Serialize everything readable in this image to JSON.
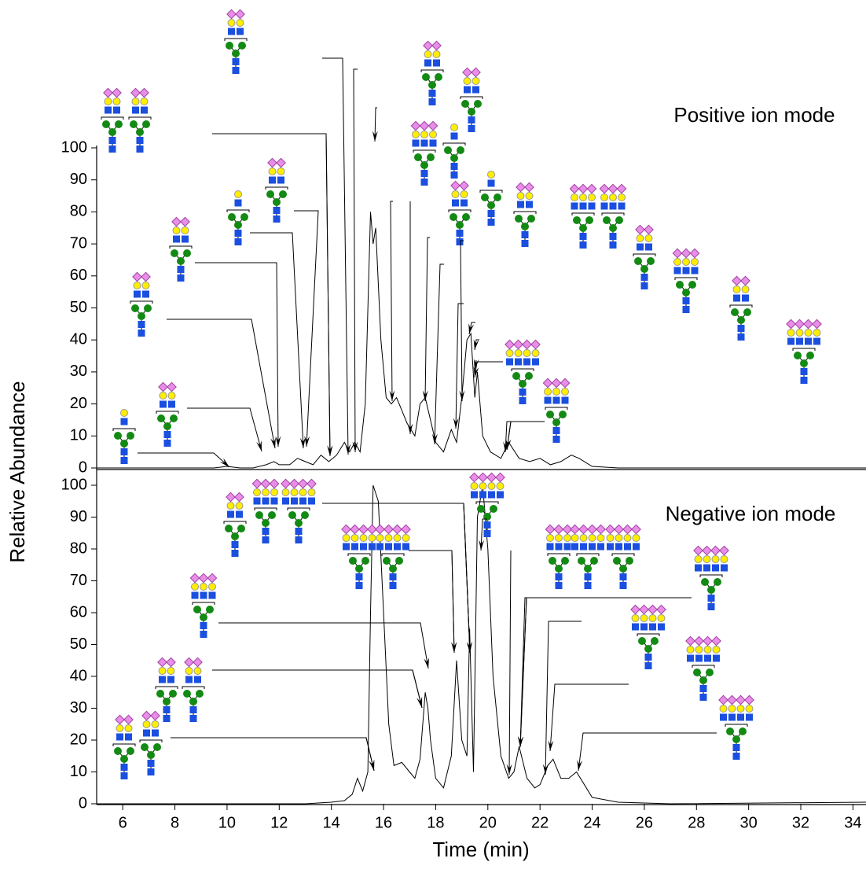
{
  "chart_data": [
    {
      "type": "line",
      "title": "Positive ion mode",
      "ylabel": "Relative Abundance",
      "color": "#000000",
      "x": [
        5,
        6,
        8,
        9.5,
        10,
        10.5,
        11,
        11.5,
        11.8,
        12,
        12.4,
        12.7,
        13,
        13.3,
        13.6,
        13.9,
        14.2,
        14.5,
        14.7,
        14.9,
        15.1,
        15.3,
        15.5,
        15.6,
        15.7,
        15.9,
        16.1,
        16.3,
        16.5,
        16.7,
        16.9,
        17.2,
        17.4,
        17.6,
        17.8,
        18,
        18.3,
        18.6,
        18.8,
        19,
        19.2,
        19.35,
        19.5,
        19.6,
        19.8,
        20.1,
        20.5,
        20.8,
        21.2,
        21.6,
        22,
        22.4,
        22.8,
        23.2,
        23.5,
        24,
        25,
        30,
        34.5
      ],
      "values": [
        0,
        0,
        0,
        0,
        0.5,
        0,
        0,
        1,
        2,
        1,
        1,
        3,
        2,
        1,
        4,
        2,
        4,
        8,
        5,
        8,
        5,
        20,
        80,
        70,
        75,
        40,
        22,
        20,
        22,
        18,
        14,
        10,
        20,
        22,
        15,
        8,
        5,
        12,
        8,
        22,
        40,
        42,
        22,
        30,
        10,
        5,
        3,
        8,
        3,
        2,
        3,
        1,
        2,
        4,
        3,
        0.5,
        0,
        0,
        0
      ],
      "xlim": [
        5,
        34.5
      ],
      "ylim": [
        0,
        100
      ],
      "yticks": [
        0,
        10,
        20,
        30,
        40,
        50,
        60,
        70,
        80,
        90,
        100
      ]
    },
    {
      "type": "line",
      "title": "Negative ion mode",
      "xlabel": "Time (min)",
      "color": "#000000",
      "x": [
        5,
        8,
        13,
        14,
        14.5,
        14.8,
        15,
        15.2,
        15.4,
        15.5,
        15.6,
        15.8,
        16,
        16.2,
        16.4,
        16.7,
        17,
        17.2,
        17.4,
        17.6,
        17.7,
        17.8,
        18,
        18.3,
        18.6,
        18.8,
        19,
        19.2,
        19.3,
        19.45,
        19.6,
        19.8,
        20,
        20.2,
        20.5,
        20.8,
        21,
        21.2,
        21.5,
        21.8,
        22,
        22.3,
        22.5,
        22.8,
        23.1,
        23.4,
        23.7,
        24,
        25,
        27,
        34.5
      ],
      "values": [
        0,
        0,
        0,
        0.5,
        1,
        3,
        8,
        4,
        10,
        60,
        100,
        95,
        60,
        25,
        12,
        13,
        10,
        8,
        14,
        35,
        30,
        20,
        8,
        5,
        15,
        45,
        20,
        15,
        55,
        10,
        90,
        100,
        80,
        40,
        15,
        8,
        10,
        18,
        8,
        5,
        6,
        12,
        14,
        8,
        8,
        10,
        6,
        2,
        0.5,
        0,
        0.5
      ],
      "xlim": [
        5,
        34.5
      ],
      "ylim": [
        0,
        100
      ],
      "yticks": [
        0,
        10,
        20,
        30,
        40,
        50,
        60,
        70,
        80,
        90,
        100
      ],
      "xticks": [
        6,
        8,
        10,
        12,
        14,
        16,
        18,
        20,
        22,
        24,
        26,
        28,
        30,
        32,
        34
      ]
    }
  ]
}
